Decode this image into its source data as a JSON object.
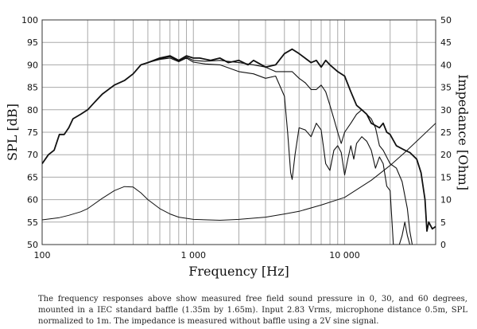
{
  "chart_data": {
    "type": "line",
    "xlabel": "Frequency [Hz]",
    "ylabel": "SPL [dB]",
    "y2label": "Impedance [Ohm]",
    "xscale": "log",
    "xlim": [
      100,
      40000
    ],
    "ylim": [
      50,
      100
    ],
    "y2lim": [
      0,
      50
    ],
    "grid": true,
    "xticks": [
      {
        "v": 100,
        "label": "100"
      },
      {
        "v": 1000,
        "label": "1 000"
      },
      {
        "v": 10000,
        "label": "10 000"
      }
    ],
    "yticks": [
      "50",
      "55",
      "60",
      "65",
      "70",
      "75",
      "80",
      "85",
      "90",
      "95",
      "100"
    ],
    "y2ticks": [
      "0",
      "5",
      "10",
      "15",
      "20",
      "25",
      "30",
      "35",
      "40",
      "45",
      "50"
    ],
    "series": [
      {
        "name": "0 degrees",
        "axis": "left",
        "width": 1.8,
        "x": [
          100,
          110,
          120,
          130,
          140,
          150,
          160,
          180,
          200,
          220,
          250,
          300,
          350,
          400,
          450,
          500,
          600,
          700,
          800,
          900,
          1000,
          1100,
          1300,
          1500,
          1700,
          2000,
          2300,
          2500,
          3000,
          3500,
          4000,
          4500,
          5000,
          6000,
          6500,
          7000,
          7500,
          8000,
          9000,
          10000,
          11000,
          12000,
          13000,
          14000,
          15000,
          17000,
          18000,
          19000,
          20000,
          22000,
          25000,
          27000,
          30000,
          32000,
          34000,
          35000,
          36000,
          38000,
          40000
        ],
        "y": [
          68,
          70,
          71,
          74.5,
          74.5,
          76,
          78,
          79,
          80,
          81.5,
          83.5,
          85.5,
          86.5,
          88,
          90,
          90.5,
          91.5,
          92,
          91,
          92,
          91.5,
          91.5,
          91,
          91.5,
          90.5,
          91,
          90,
          91,
          89.5,
          90,
          92.5,
          93.5,
          92.5,
          90.5,
          91,
          89.5,
          91,
          90,
          88.5,
          87.5,
          84,
          81,
          80,
          79,
          77,
          76,
          77,
          75,
          74.5,
          72,
          71,
          70.5,
          69,
          66,
          60,
          53,
          55,
          53.5,
          54
        ]
      },
      {
        "name": "30 degrees",
        "axis": "left",
        "width": 1.1,
        "x": [
          500,
          600,
          700,
          800,
          900,
          1000,
          1200,
          1500,
          2000,
          2500,
          3000,
          3500,
          4000,
          4500,
          5000,
          5500,
          6000,
          6500,
          7000,
          7500,
          8000,
          8500,
          9000,
          9500,
          10000,
          11000,
          12000,
          13000,
          14000,
          15000,
          16000,
          17000,
          18000,
          20000,
          22000,
          24000,
          26000,
          27000,
          28000
        ],
        "y": [
          90.5,
          91.3,
          91.8,
          90.8,
          91.7,
          91,
          90.8,
          91,
          90.5,
          90,
          89.5,
          88.5,
          88.5,
          88.5,
          87,
          86,
          84.5,
          84.5,
          85.5,
          84,
          81,
          78,
          75,
          72.5,
          75,
          77,
          79,
          80,
          79,
          78,
          76,
          72,
          71,
          68,
          67,
          64,
          58,
          53,
          50
        ]
      },
      {
        "name": "60 degrees",
        "axis": "left",
        "width": 1.1,
        "x": [
          500,
          600,
          700,
          800,
          900,
          1000,
          1200,
          1500,
          2000,
          2500,
          3000,
          3500,
          4000,
          4200,
          4400,
          4500,
          4700,
          5000,
          5500,
          6000,
          6500,
          7000,
          7500,
          8000,
          8500,
          9000,
          9500,
          10000,
          10500,
          11000,
          11500,
          12000,
          13000,
          14000,
          15000,
          16000,
          17000,
          18000,
          19000,
          20000,
          21000,
          22000,
          23000,
          24000,
          25000,
          26000,
          27000
        ],
        "y": [
          90.5,
          91.2,
          91.5,
          90.7,
          91.5,
          90.6,
          90.2,
          90,
          88.5,
          88,
          87,
          87.5,
          83,
          75,
          66,
          64.5,
          70,
          76,
          75.5,
          74,
          77,
          75.5,
          68,
          66.5,
          71,
          72,
          70.5,
          65.5,
          69,
          72,
          69,
          72.5,
          74,
          73,
          71,
          67,
          69.5,
          68,
          63,
          62,
          50,
          50,
          50,
          52,
          55,
          52,
          50
        ]
      },
      {
        "name": "Impedance",
        "axis": "right",
        "width": 1,
        "x": [
          100,
          130,
          150,
          180,
          200,
          250,
          300,
          350,
          400,
          450,
          500,
          600,
          700,
          800,
          1000,
          1500,
          2000,
          3000,
          4000,
          5000,
          7000,
          10000,
          15000,
          20000,
          25000,
          30000,
          40000
        ],
        "y": [
          5.5,
          6,
          6.5,
          7.3,
          8,
          10.3,
          12,
          12.9,
          12.8,
          11.5,
          10,
          8,
          6.8,
          6.1,
          5.6,
          5.4,
          5.6,
          6.1,
          6.8,
          7.4,
          8.8,
          10.5,
          14.3,
          17.6,
          20.5,
          23,
          27
        ]
      }
    ]
  },
  "caption": "The frequency responses above show measured free field sound pressure in 0, 30, and 60 degrees, mounted in a IEC standard baffle (1.35m by 1.65m). Input 2.83 Vrms, microphone distance 0.5m, SPL normalized to 1m. The impedance is measured without baffle using a 2V sine signal."
}
